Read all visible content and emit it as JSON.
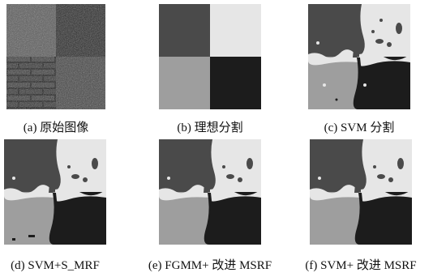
{
  "panels": [
    {
      "caption": "(a) 原始图像"
    },
    {
      "caption": "(b) 理想分割"
    },
    {
      "caption": "(c) SVM 分割"
    },
    {
      "caption": "(d) SVM+S_MRF"
    },
    {
      "caption": "(e) FGMM+ 改进 MSRF"
    },
    {
      "caption": "(f) SVM+ 改进 MSRF"
    }
  ]
}
